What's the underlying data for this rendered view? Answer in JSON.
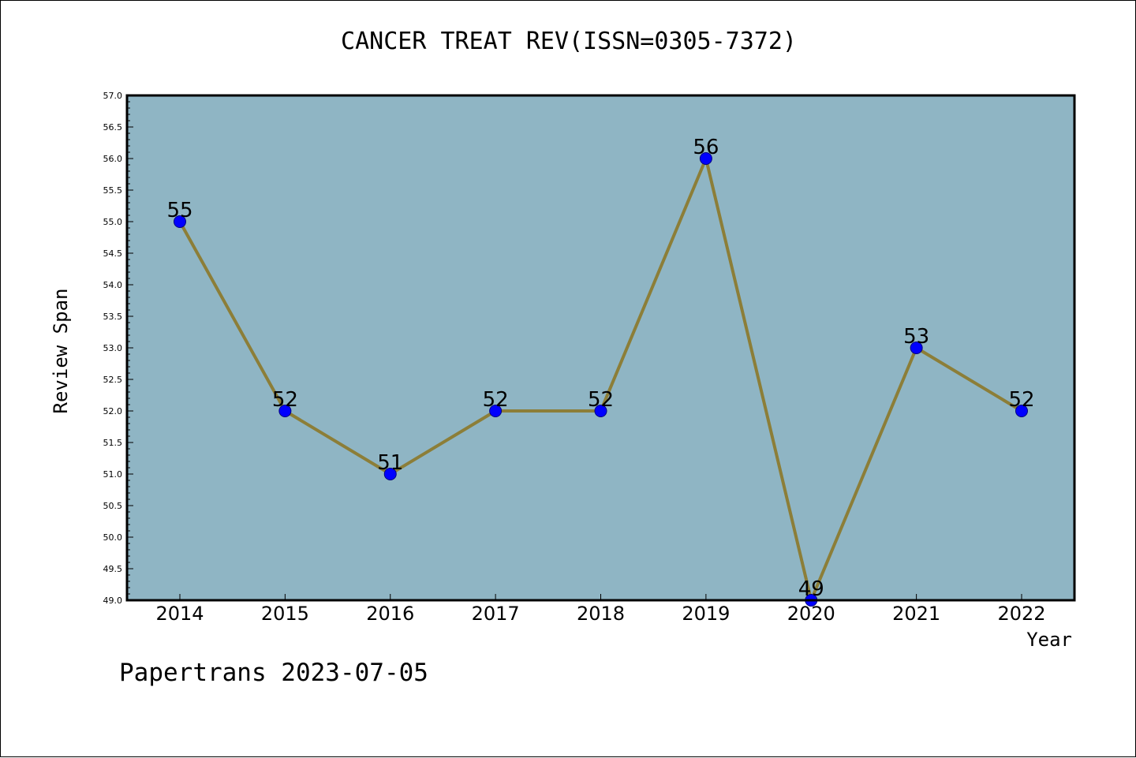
{
  "title": "CANCER TREAT REV(ISSN=0305-7372)",
  "footer": "Papertrans 2023-07-05",
  "colors": {
    "plot_background": "#8fb5c4",
    "line": "#8c7e38",
    "marker_fill": "#0000ff",
    "marker_edge": "#000080"
  },
  "chart_data": {
    "type": "line",
    "xlabel": "Year",
    "ylabel": "Review Span",
    "categories": [
      "2014",
      "2015",
      "2016",
      "2017",
      "2018",
      "2019",
      "2020",
      "2021",
      "2022"
    ],
    "series": [
      {
        "values": [
          55,
          52,
          51,
          52,
          52,
          56,
          49,
          53,
          52
        ]
      }
    ],
    "data_labels": [
      "55",
      "52",
      "51",
      "52",
      "52",
      "56",
      "49",
      "53",
      "52"
    ],
    "ylim": [
      49.0,
      57.0
    ],
    "yticks": [
      "49.0",
      "49.5",
      "50.0",
      "50.5",
      "51.0",
      "51.5",
      "52.0",
      "52.5",
      "53.0",
      "53.5",
      "54.0",
      "54.5",
      "55.0",
      "55.5",
      "56.0",
      "56.5",
      "57.0"
    ],
    "grid": false,
    "legend": "none"
  }
}
